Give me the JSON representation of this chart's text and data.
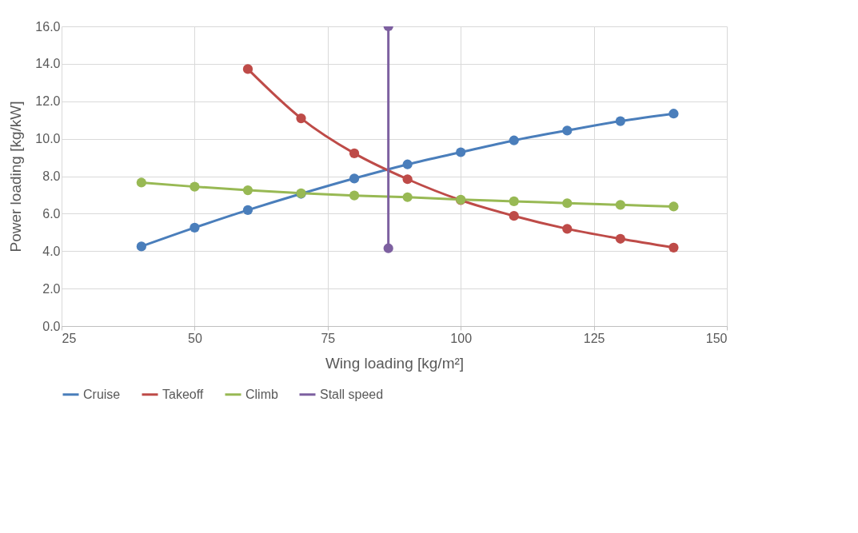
{
  "chart_data": {
    "type": "line",
    "xlabel": "Wing loading [kg/m²]",
    "ylabel": "Power loading [kg/kW]",
    "xlim": [
      25,
      150
    ],
    "xticks": [
      25,
      50,
      75,
      100,
      125,
      150
    ],
    "ylim": [
      0,
      16
    ],
    "yticks": [
      {
        "value": 0,
        "label": "0.0"
      },
      {
        "value": 2,
        "label": "2.0"
      },
      {
        "value": 4,
        "label": "4.0"
      },
      {
        "value": 6,
        "label": "6.0"
      },
      {
        "value": 8,
        "label": "8.0"
      },
      {
        "value": 10,
        "label": "10.0"
      },
      {
        "value": 12,
        "label": "12.0"
      },
      {
        "value": 14,
        "label": "14.0"
      },
      {
        "value": 16,
        "label": "16.0"
      }
    ],
    "grid": true,
    "legend": "bottom",
    "marker": "circle",
    "line_style": "solid",
    "series": [
      {
        "name": "Cruise",
        "color": "#4a7ebb",
        "x": [
          40,
          50,
          60,
          70,
          80,
          90,
          100,
          110,
          120,
          130,
          140
        ],
        "values": [
          4.25,
          5.25,
          6.19,
          7.06,
          7.88,
          8.63,
          9.28,
          9.91,
          10.44,
          10.94,
          11.34
        ]
      },
      {
        "name": "Takeoff",
        "color": "#be4b48",
        "x": [
          60,
          70,
          80,
          90,
          100,
          110,
          120,
          130,
          140
        ],
        "values": [
          13.72,
          11.09,
          9.22,
          7.84,
          6.72,
          5.88,
          5.19,
          4.66,
          4.19
        ]
      },
      {
        "name": "Climb",
        "color": "#98b954",
        "x": [
          40,
          50,
          60,
          70,
          80,
          90,
          100,
          110,
          120,
          130,
          140
        ],
        "values": [
          7.66,
          7.44,
          7.25,
          7.09,
          6.97,
          6.88,
          6.75,
          6.66,
          6.56,
          6.47,
          6.38
        ]
      },
      {
        "name": "Stall speed",
        "color": "#7d60a0",
        "x": [
          86.4,
          86.4
        ],
        "values": [
          4.15,
          16
        ]
      }
    ]
  }
}
